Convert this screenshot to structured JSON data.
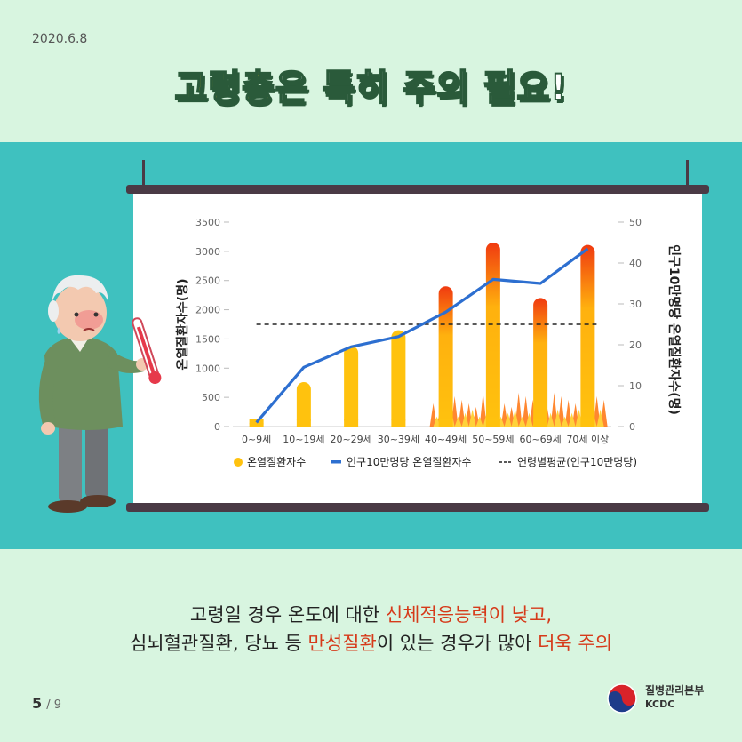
{
  "header": {
    "date": "2020.6.8",
    "title_highlight": "고령층",
    "title_rest": "은 특히 주의 필요!"
  },
  "chart_data": {
    "type": "bar",
    "categories": [
      "0~9세",
      "10~19세",
      "20~29세",
      "30~39세",
      "40~49세",
      "50~59세",
      "60~69세",
      "70세 이상"
    ],
    "series": [
      {
        "name": "온열질환자수",
        "type": "bar",
        "axis": "left",
        "values": [
          100,
          760,
          1380,
          1650,
          2400,
          3150,
          2200,
          3110
        ]
      },
      {
        "name": "인구10만명당 온열질환자수",
        "type": "line",
        "axis": "right",
        "values": [
          1,
          14.5,
          19.5,
          22,
          28,
          36,
          35,
          43.5
        ]
      },
      {
        "name": "연령별평균(인구10만명당)",
        "type": "reference-line",
        "axis": "right",
        "value": 25
      }
    ],
    "ylabel": "온열질환자수(명)",
    "y2label": "인구10만명당 온열질환자수(명)",
    "ylim": [
      0,
      3500
    ],
    "y2lim": [
      0,
      50
    ],
    "yticks": [
      "0",
      "500",
      "1000",
      "1500",
      "2000",
      "2500",
      "3000",
      "3500"
    ],
    "y2ticks": [
      "0",
      "10",
      "20",
      "30",
      "40",
      "50"
    ],
    "legend_position": "bottom",
    "colors": {
      "bar": "#ffc20e",
      "bar_top": "#f03a10",
      "line": "#2d6fd0",
      "ref": "#222222"
    }
  },
  "caption": {
    "line1_a": "고령일 경우 온도에 대한 ",
    "line1_b": "신체적응능력이 낮고,",
    "line2_a": "심뇌혈관질환, 당뇨 등 ",
    "line2_b": "만성질환",
    "line2_c": "이 있는 경우가 많아 ",
    "line2_d": "더욱 주의"
  },
  "pager": {
    "current": "5",
    "total": "/ 9"
  },
  "org": {
    "name_ko": "질병관리본부",
    "name_en": "KCDC"
  },
  "icons": [
    "elderly-man-illustration",
    "thermometer-icon",
    "flame-decoration",
    "kcdc-taegeuk-logo"
  ]
}
